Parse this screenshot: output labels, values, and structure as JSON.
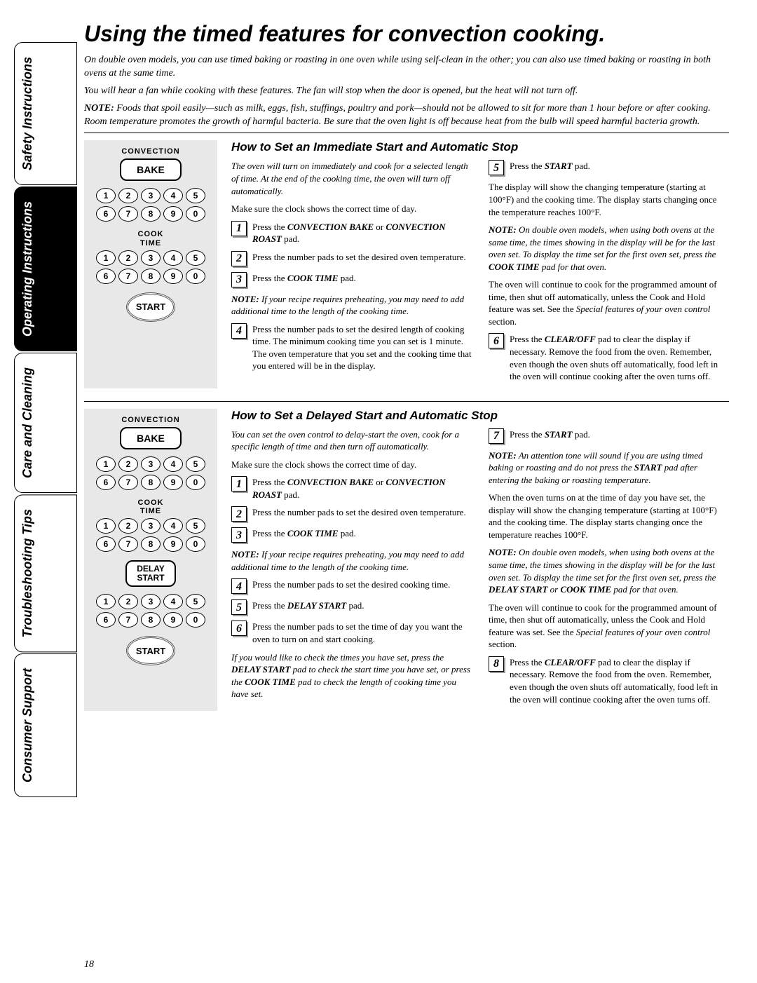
{
  "sideTabs": [
    {
      "label": "Safety Instructions",
      "active": false
    },
    {
      "label": "Operating Instructions",
      "active": true
    },
    {
      "label": "Care and Cleaning",
      "active": false
    },
    {
      "label": "Troubleshooting Tips",
      "active": false
    },
    {
      "label": "Consumer Support",
      "active": false
    }
  ],
  "title": "Using the timed features for convection cooking.",
  "intro1": "On double oven models, you can use timed baking or roasting in one oven while using self-clean in the other; you can also use timed baking or roasting in both ovens at the same time.",
  "intro2": "You will hear a fan while cooking with these features. The fan will stop when the door is opened, but the heat will not turn off.",
  "intro3_prefix": "NOTE:",
  "intro3": " Foods that spoil easily—such as milk, eggs, fish, stuffings, poultry and pork—should not be allowed to sit for more than 1 hour before or after cooking. Room temperature promotes the growth of harmful bacteria. Be sure that the oven light is off because heat from the bulb will speed harmful bacteria growth.",
  "panel": {
    "convection": "CONVECTION",
    "bake": "BAKE",
    "cookTime": "COOK TIME",
    "delayStart": "DELAY START",
    "start": "START",
    "keys": [
      "1",
      "2",
      "3",
      "4",
      "5",
      "6",
      "7",
      "8",
      "9",
      "0"
    ]
  },
  "sec1": {
    "heading": "How to Set an Immediate Start and Automatic Stop",
    "lead": "The oven will turn on immediately and cook for a selected length of time. At the end of the cooking time, the oven will turn off automatically.",
    "p1": "Make sure the clock shows the correct time of day.",
    "s1a": "Press the ",
    "s1b": "CONVECTION BAKE",
    "s1c": " or ",
    "s1d": "CONVECTION ROAST",
    "s1e": " pad.",
    "s2": "Press the number pads to set the desired oven temperature.",
    "s3a": "Press the ",
    "s3b": "COOK TIME",
    "s3c": " pad.",
    "note1_prefix": "NOTE:",
    "note1": " If your recipe requires preheating, you may need to add additional time to the length of the cooking time.",
    "s4": "Press the number pads to set the desired length of cooking time. The minimum cooking time you can set is 1 minute. The oven temperature that you set and the cooking time that you entered will be in the display.",
    "s5a": "Press the ",
    "s5b": "START",
    "s5c": " pad.",
    "r1": "The display will show the changing temperature (starting at 100°F) and the cooking time. The display starts changing once the temperature reaches 100°F.",
    "rnote_prefix": "NOTE:",
    "rnote_a": " On double oven models, when using both ovens at the same time, the times showing in the display will be for the last oven set. To display the time set for the first oven set, press the ",
    "rnote_b": "COOK TIME",
    "rnote_c": " pad for that oven.",
    "r2a": "The oven will continue to cook for the programmed amount of time, then shut off automatically, unless the Cook and Hold feature was set. See the ",
    "r2b": "Special features of your oven control",
    "r2c": " section.",
    "s6a": "Press the ",
    "s6b": "CLEAR/OFF",
    "s6c": " pad to clear the display if necessary. Remove the food from the oven. Remember, even though the oven shuts off automatically, food left in the oven will continue cooking after the oven turns off."
  },
  "sec2": {
    "heading": "How to Set a Delayed Start and Automatic Stop",
    "lead": "You can set the oven control to delay-start the oven, cook for a specific length of time and then turn off automatically.",
    "p1": "Make sure the clock shows the correct time of day.",
    "s1a": "Press the ",
    "s1b": "CONVECTION BAKE",
    "s1c": " or ",
    "s1d": "CONVECTION ROAST",
    "s1e": " pad.",
    "s2": "Press the number pads to set the desired oven temperature.",
    "s3a": "Press the ",
    "s3b": "COOK TIME",
    "s3c": " pad.",
    "note1_prefix": "NOTE:",
    "note1": " If your recipe requires preheating, you may need to add additional time to the length of the cooking time.",
    "s4": "Press the number pads to set the desired cooking time.",
    "s5a": "Press the ",
    "s5b": "DELAY START",
    "s5c": " pad.",
    "s6": "Press the number pads to set the time of day you want the oven to turn on and start cooking.",
    "tail_a": "If you would like to check the times you have set, press the ",
    "tail_b": "DELAY START",
    "tail_c": " pad to check the start time you have set, or press the ",
    "tail_d": "COOK TIME",
    "tail_e": " pad to check the length of cooking time you have set.",
    "s7a": "Press the ",
    "s7b": "START",
    "s7c": " pad.",
    "rnote1_prefix": "NOTE:",
    "rnote1_a": " An attention tone will sound if you are using timed baking or roasting and do not press the ",
    "rnote1_b": "START",
    "rnote1_c": " pad after entering the baking or roasting temperature.",
    "r1": "When the oven turns on at the time of day you have set, the display will show the changing temperature (starting at 100°F) and the cooking time. The display starts changing once the temperature reaches 100°F.",
    "rnote2_prefix": "NOTE:",
    "rnote2_a": " On double oven models, when using both ovens at the same time, the times showing in the display will be for the last oven set. To display the time set for the first oven set, press the ",
    "rnote2_b": "DELAY START",
    "rnote2_c": " or ",
    "rnote2_d": "COOK TIME",
    "rnote2_e": " pad for that oven.",
    "r2a": "The oven will continue to cook for the programmed amount of time, then shut off automatically, unless the Cook and Hold feature was set. See the ",
    "r2b": "Special features of your oven control",
    "r2c": " section.",
    "s8a": "Press the ",
    "s8b": "CLEAR/OFF",
    "s8c": " pad to clear the display if necessary. Remove the food from the oven. Remember, even though the oven shuts off automatically, food left in the oven will continue cooking after the oven turns off."
  },
  "pageNumber": "18"
}
